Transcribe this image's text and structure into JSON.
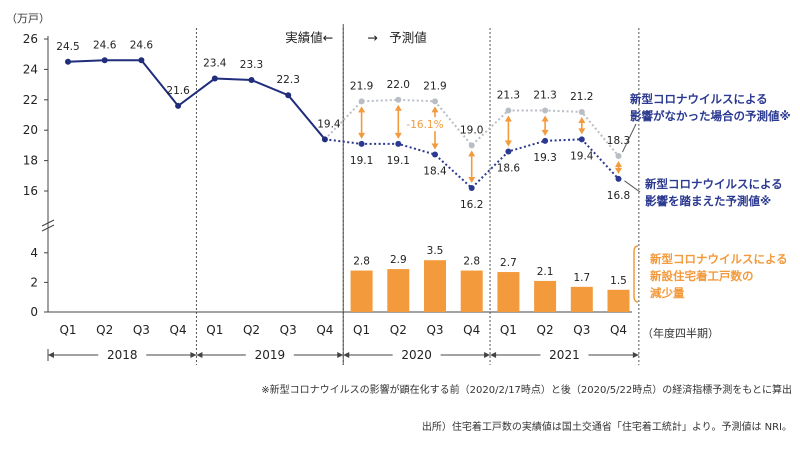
{
  "chart_data": {
    "type": "line",
    "unit_label": "（万戸）",
    "header_actual": "実績値←",
    "header_arrow": "→",
    "header_forecast": "予測値",
    "categories": [
      "Q1",
      "Q2",
      "Q3",
      "Q4",
      "Q1",
      "Q2",
      "Q3",
      "Q4",
      "Q1",
      "Q2",
      "Q3",
      "Q4",
      "Q1",
      "Q2",
      "Q3",
      "Q4"
    ],
    "years": [
      "2018",
      "2019",
      "2020",
      "2021"
    ],
    "x_suffix_label": "（年度四半期）",
    "y_upper_ticks": [
      16,
      18,
      20,
      22,
      24,
      26
    ],
    "y_lower_ticks": [
      0,
      2,
      4
    ],
    "ylim_upper": [
      15,
      26
    ],
    "ylim_lower": [
      0,
      4.5
    ],
    "series": [
      {
        "name": "実績値",
        "color": "#1f2d7a",
        "values": [
          24.5,
          24.6,
          24.6,
          21.6,
          23.4,
          23.3,
          22.3,
          19.4,
          null,
          null,
          null,
          null,
          null,
          null,
          null,
          null
        ],
        "labels": [
          "24.5",
          "24.6",
          "24.6",
          "21.6",
          "23.4",
          "23.3",
          "22.3",
          "19.4"
        ]
      },
      {
        "name": "新型コロナウイルスによる影響がなかった場合の予測値※",
        "color": "#b9bec6",
        "values": [
          null,
          null,
          null,
          null,
          null,
          null,
          null,
          19.4,
          21.9,
          22.0,
          21.9,
          19.0,
          21.3,
          21.3,
          21.2,
          18.3
        ],
        "labels": [
          "21.9",
          "22.0",
          "21.9",
          "19.0",
          "21.3",
          "21.3",
          "21.2",
          "18.3"
        ]
      },
      {
        "name": "新型コロナウイルスによる影響を踏まえた予測値※",
        "color": "#2b3990",
        "values": [
          null,
          null,
          null,
          null,
          null,
          null,
          null,
          19.4,
          19.1,
          19.1,
          18.4,
          16.2,
          18.6,
          19.3,
          19.4,
          16.8
        ],
        "labels": [
          "19.1",
          "19.1",
          "18.4",
          "16.2",
          "18.6",
          "19.3",
          "19.4",
          "16.8"
        ]
      }
    ],
    "bars": {
      "name": "新型コロナウイルスによる新設住宅着工戸数の減少量",
      "color": "#f39a3c",
      "values": [
        2.8,
        2.9,
        3.5,
        2.8,
        2.7,
        2.1,
        1.7,
        1.5
      ],
      "labels": [
        "2.8",
        "2.9",
        "3.5",
        "2.8",
        "2.7",
        "2.1",
        "1.7",
        "1.5"
      ]
    },
    "annotation_pct": "-16.1%",
    "legend_no_covid": [
      "新型コロナウイルスによる",
      "影響がなかった場合の予測値※"
    ],
    "legend_covid": [
      "新型コロナウイルスによる",
      "影響を踏まえた予測値※"
    ],
    "legend_bars": [
      "新型コロナウイルスによる",
      "新設住宅着工戸数の",
      "減少量"
    ],
    "footnote": "※新型コロナウイルスの影響が顕在化する前（2020/2/17時点）と後（2020/5/22時点）の経済指標予測をもとに算出",
    "source": "出所）住宅着工戸数の実績値は国土交通省「住宅着工統計」より。予測値は NRI。"
  }
}
